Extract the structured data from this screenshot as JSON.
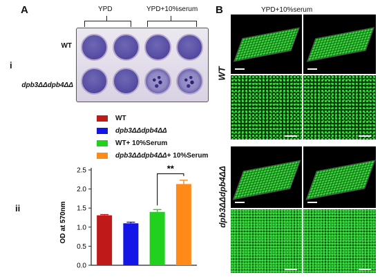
{
  "panel_a": {
    "letter": "A",
    "sub_i": "i",
    "sub_ii": "ii",
    "groups": [
      "YPD",
      "YPD+10%serum"
    ],
    "rows": [
      "WT",
      "dpb3ΔΔdpb4ΔΔ"
    ]
  },
  "panel_b": {
    "letter": "B",
    "title": "YPD+10%serum",
    "rows": [
      "WT",
      "dpb3ΔΔdpb4ΔΔ"
    ]
  },
  "chart_data": {
    "type": "bar",
    "categories": [
      "WT",
      "dpb3ΔΔdpb4ΔΔ",
      "WT+ 10%Serum",
      "dpb3ΔΔdpb4ΔΔ+ 10%Serum"
    ],
    "values": [
      1.31,
      1.1,
      1.4,
      2.13
    ],
    "errors": [
      0.02,
      0.03,
      0.06,
      0.1
    ],
    "colors": [
      "#c0191a",
      "#1316e6",
      "#22d11e",
      "#ff8a19"
    ],
    "ylabel": "OD at 570nm",
    "ylim": [
      0,
      2.5
    ],
    "yticks": [
      0.0,
      0.5,
      1.0,
      1.5,
      2.0,
      2.5
    ],
    "yticklabels": [
      "0.0",
      "0.5",
      "1.0",
      "1.5",
      "2.0",
      "2.5"
    ],
    "significance": {
      "from": 2,
      "to": 3,
      "label": "**"
    },
    "legend": [
      "WT",
      "dpb3ΔΔdpb4ΔΔ",
      "WT+ 10%Serum",
      "dpb3ΔΔdpb4ΔΔ+ 10%Serum"
    ],
    "legend_italic_part": [
      "",
      "dpb3ΔΔdpb4ΔΔ",
      "",
      "dpb3ΔΔdpb4ΔΔ"
    ],
    "legend_plain_part": [
      "WT",
      "",
      "WT+ 10%Serum",
      "+ 10%Serum"
    ],
    "legend_placement": "top"
  }
}
